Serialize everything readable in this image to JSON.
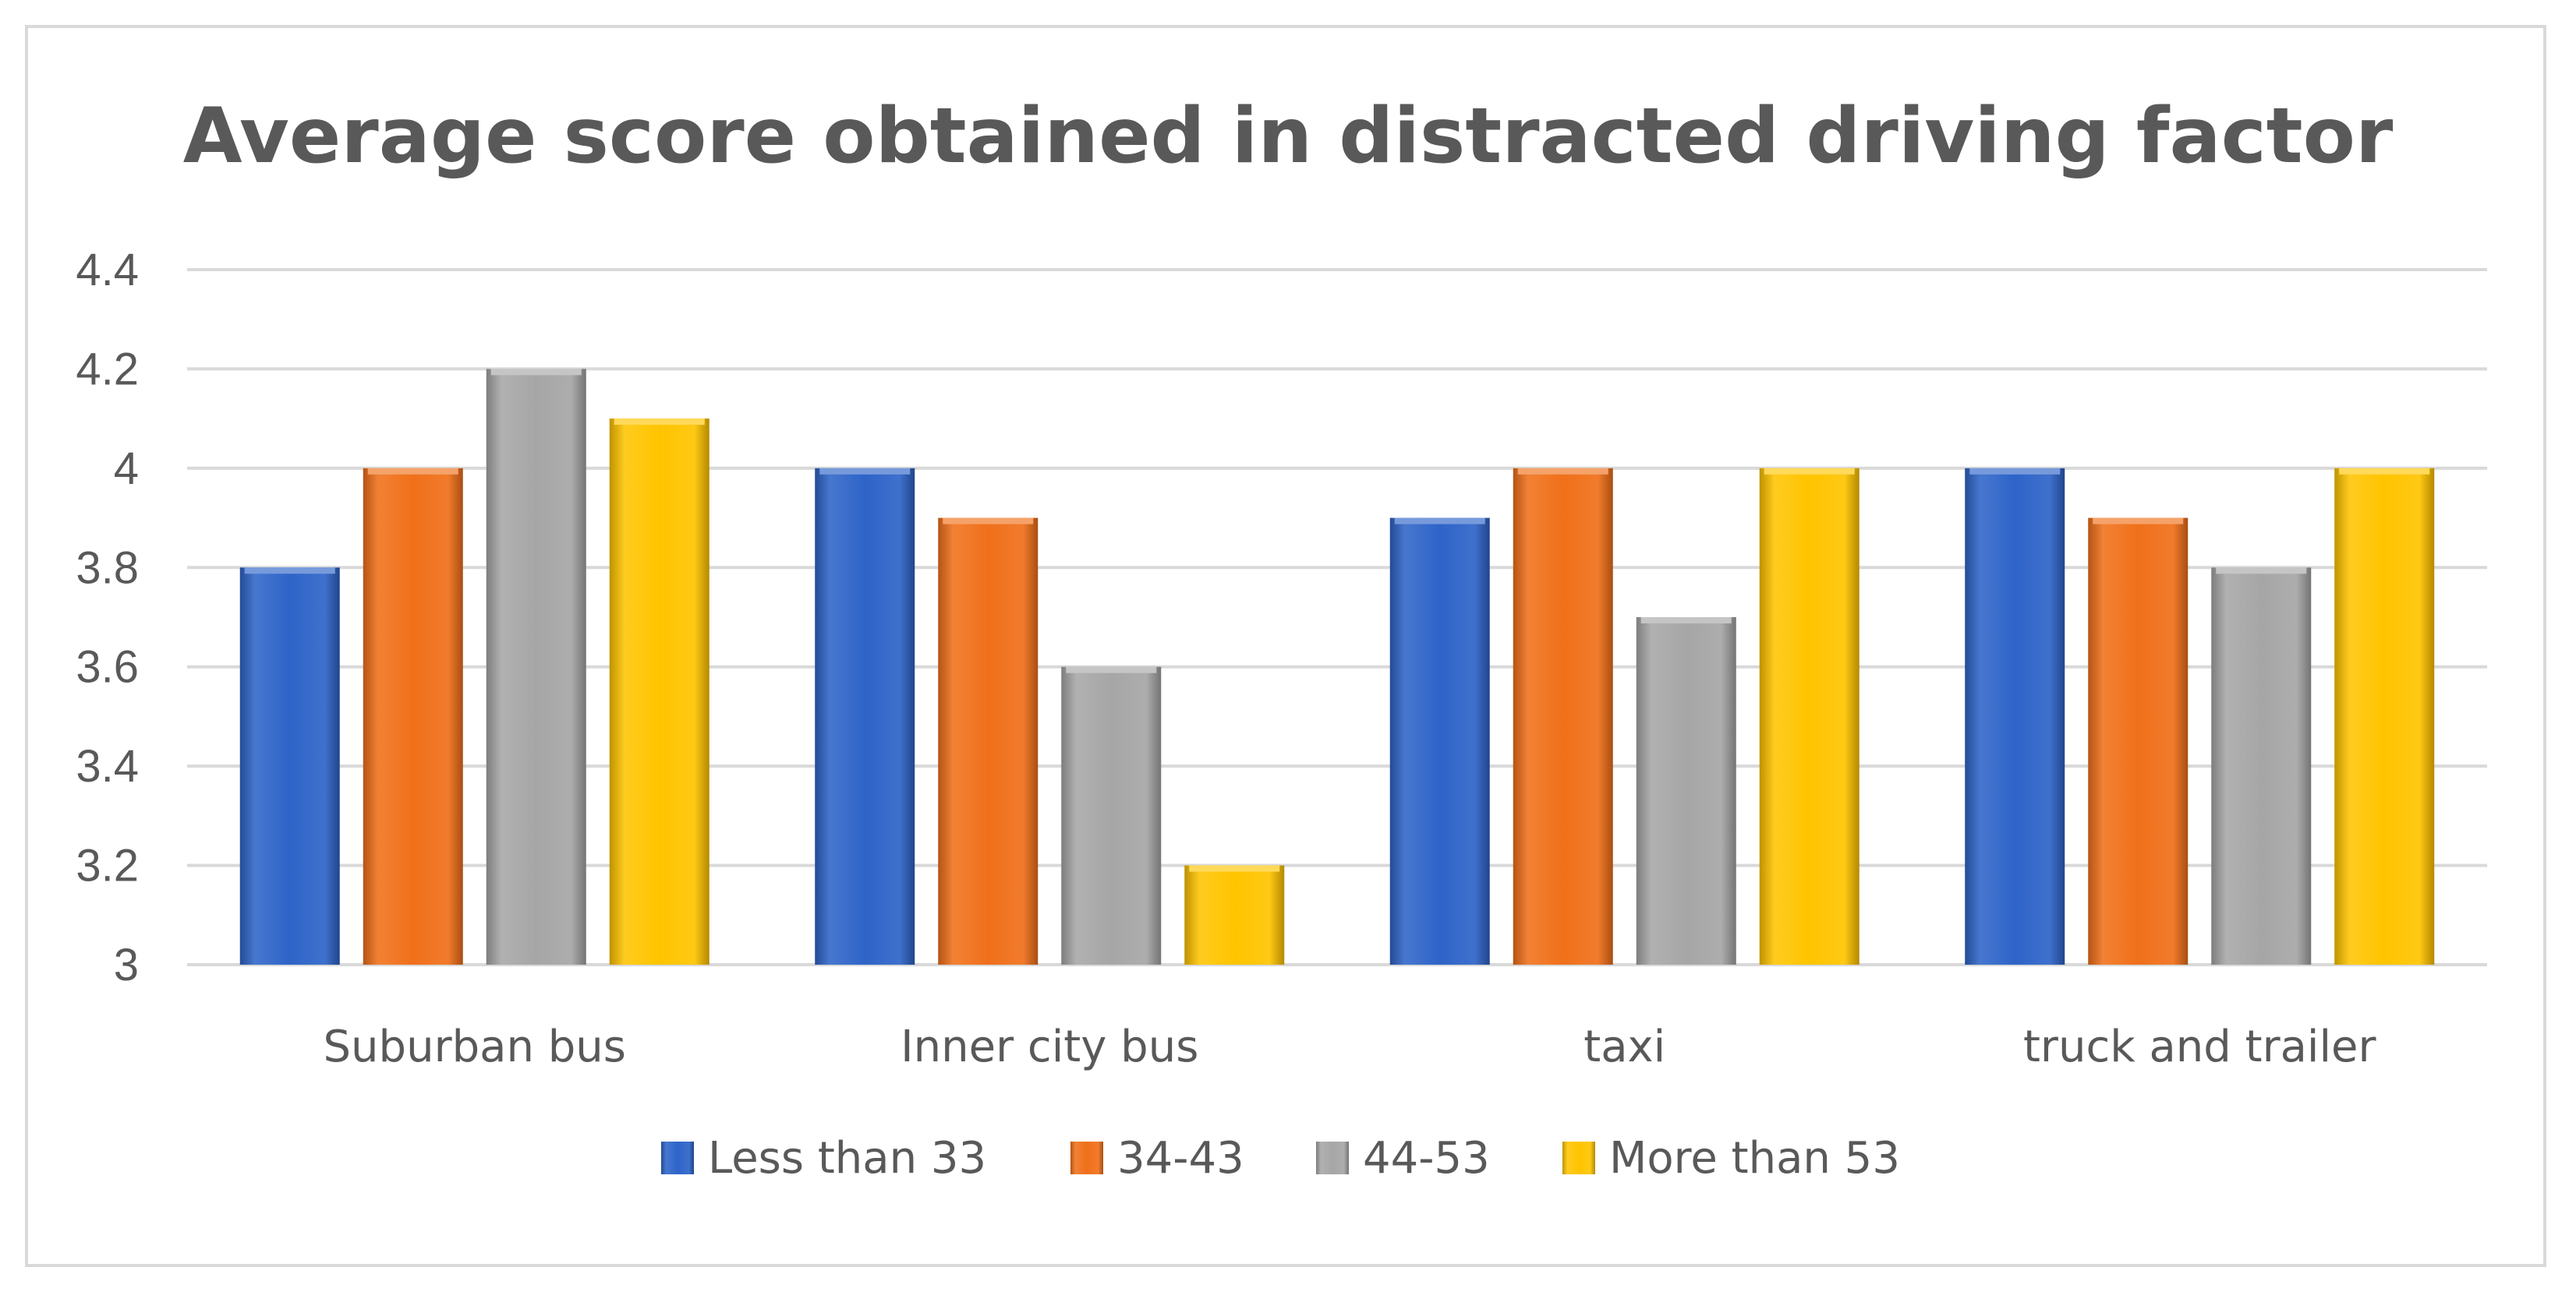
{
  "chart_data": {
    "type": "bar",
    "title": "Average score obtained in distracted driving factor",
    "xlabel": "",
    "ylabel": "",
    "categories": [
      "Suburban bus",
      "Inner city bus",
      "taxi",
      "truck and  trailer"
    ],
    "series": [
      {
        "name": "Less than 33",
        "values": [
          3.8,
          4.0,
          3.9,
          4.0
        ],
        "color": "#2e64c8"
      },
      {
        "name": "34-43",
        "values": [
          4.0,
          3.9,
          4.0,
          3.9
        ],
        "color": "#f0701a"
      },
      {
        "name": "44-53",
        "values": [
          4.2,
          3.6,
          3.7,
          3.8
        ],
        "color": "#a6a6a6"
      },
      {
        "name": "More than 53",
        "values": [
          4.1,
          3.2,
          4.0,
          4.0
        ],
        "color": "#ffc400"
      }
    ],
    "ylim": [
      3,
      4.4
    ],
    "yticks": [
      "3",
      "3.2",
      "3.4",
      "3.6",
      "3.8",
      "4",
      "4.2",
      "4.4"
    ],
    "grid": true,
    "legend_position": "bottom"
  }
}
